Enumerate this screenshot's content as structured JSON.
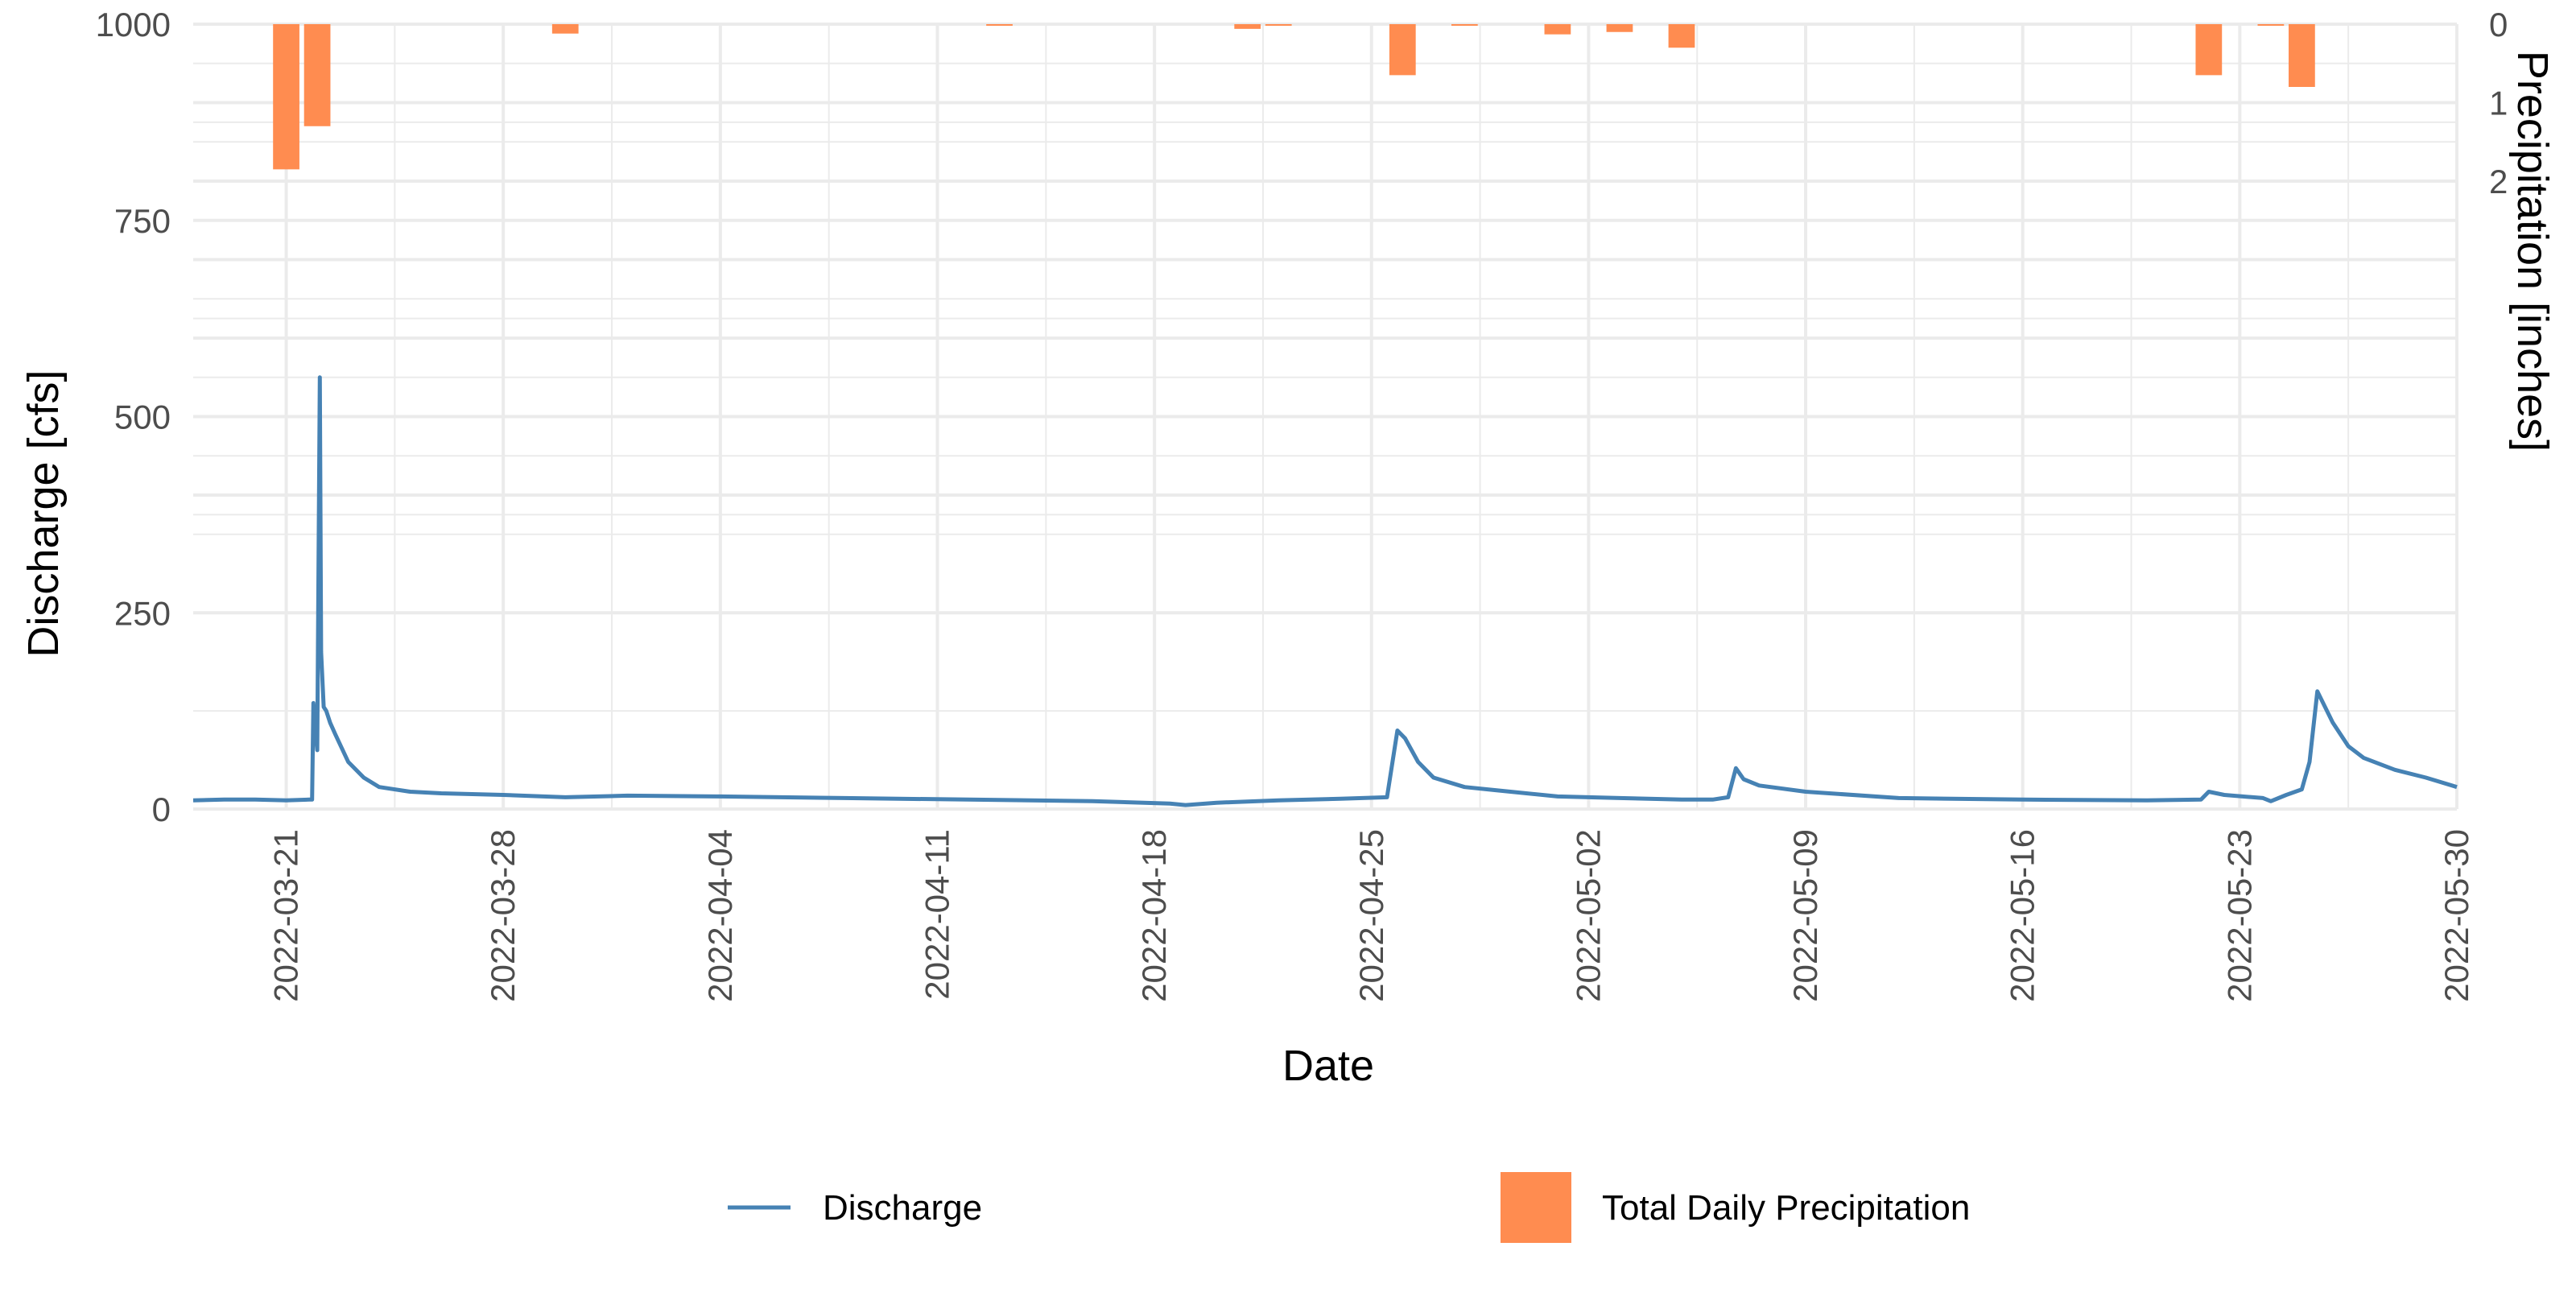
{
  "chart_data": {
    "type": "line",
    "xlabel": "Date",
    "ylabel": "Discharge [cfs]",
    "y2label": "Precipitation [inches]",
    "xlim": [
      "2022-03-18",
      "2022-05-30"
    ],
    "ylim": [
      0,
      1000
    ],
    "y2lim": [
      0,
      10
    ],
    "y2_inverted": true,
    "grid": true,
    "legend_position": "bottom",
    "x_ticks": [
      "2022-03-21",
      "2022-03-28",
      "2022-04-04",
      "2022-04-11",
      "2022-04-18",
      "2022-04-25",
      "2022-05-02",
      "2022-05-09",
      "2022-05-16",
      "2022-05-23",
      "2022-05-30"
    ],
    "y_ticks": [
      "0",
      "250",
      "500",
      "750",
      "1000"
    ],
    "y2_ticks": [
      "0",
      "1",
      "2"
    ],
    "colors": {
      "discharge": "#4682B4",
      "precipitation": "#FF8C50",
      "grid": "#EBEBEB"
    },
    "series": [
      {
        "name": "Discharge",
        "kind": "line",
        "x": [
          "2022-03-18T00:00",
          "2022-03-19T00:00",
          "2022-03-20T00:00",
          "2022-03-21T00:00",
          "2022-03-21T18:00",
          "2022-03-21T20:00",
          "2022-03-21T21:00",
          "2022-03-22T00:00",
          "2022-03-22T02:00",
          "2022-03-22T03:00",
          "2022-03-22T05:00",
          "2022-03-22T07:00",
          "2022-03-22T10:00",
          "2022-03-22T14:00",
          "2022-03-23T00:00",
          "2022-03-23T12:00",
          "2022-03-24T00:00",
          "2022-03-25T00:00",
          "2022-03-26T00:00",
          "2022-03-28T00:00",
          "2022-03-30T00:00",
          "2022-04-01T00:00",
          "2022-04-04T00:00",
          "2022-04-08T00:00",
          "2022-04-12T00:00",
          "2022-04-16T00:00",
          "2022-04-18T12:00",
          "2022-04-19T00:00",
          "2022-04-20T00:00",
          "2022-04-22T00:00",
          "2022-04-24T00:00",
          "2022-04-25T12:00",
          "2022-04-25T20:00",
          "2022-04-26T02:00",
          "2022-04-26T12:00",
          "2022-04-27T00:00",
          "2022-04-28T00:00",
          "2022-04-29T00:00",
          "2022-05-01T00:00",
          "2022-05-03T00:00",
          "2022-05-05T00:00",
          "2022-05-06T00:00",
          "2022-05-06T12:00",
          "2022-05-06T18:00",
          "2022-05-07T00:00",
          "2022-05-07T12:00",
          "2022-05-09T00:00",
          "2022-05-12T00:00",
          "2022-05-16T00:00",
          "2022-05-20T00:00",
          "2022-05-21T18:00",
          "2022-05-22T00:00",
          "2022-05-22T12:00",
          "2022-05-23T18:00",
          "2022-05-24T00:00",
          "2022-05-24T12:00",
          "2022-05-25T00:00",
          "2022-05-25T06:00",
          "2022-05-25T12:00",
          "2022-05-25T18:00",
          "2022-05-26T00:00",
          "2022-05-26T12:00",
          "2022-05-27T00:00",
          "2022-05-28T00:00",
          "2022-05-29T00:00",
          "2022-05-30T00:00"
        ],
        "y": [
          11,
          12,
          12,
          11,
          12,
          12,
          135,
          75,
          550,
          200,
          130,
          125,
          110,
          95,
          60,
          40,
          28,
          22,
          20,
          18,
          15,
          17,
          16,
          14,
          12,
          10,
          7,
          5,
          8,
          11,
          13,
          15,
          100,
          90,
          60,
          40,
          28,
          24,
          16,
          14,
          12,
          12,
          15,
          52,
          38,
          30,
          22,
          14,
          12,
          11,
          12,
          22,
          18,
          14,
          10,
          18,
          25,
          60,
          150,
          130,
          110,
          80,
          65,
          50,
          40,
          28
        ]
      },
      {
        "name": "Total Daily Precipitation",
        "kind": "bar",
        "x": [
          "2022-03-21",
          "2022-03-22",
          "2022-03-30",
          "2022-04-13",
          "2022-04-21",
          "2022-04-22",
          "2022-04-26",
          "2022-04-28",
          "2022-05-01",
          "2022-05-03",
          "2022-05-05",
          "2022-05-22",
          "2022-05-24",
          "2022-05-25"
        ],
        "y": [
          1.85,
          1.3,
          0.12,
          0.02,
          0.06,
          0.02,
          0.65,
          0.02,
          0.13,
          0.1,
          0.3,
          0.65,
          0.02,
          0.8
        ]
      }
    ]
  }
}
